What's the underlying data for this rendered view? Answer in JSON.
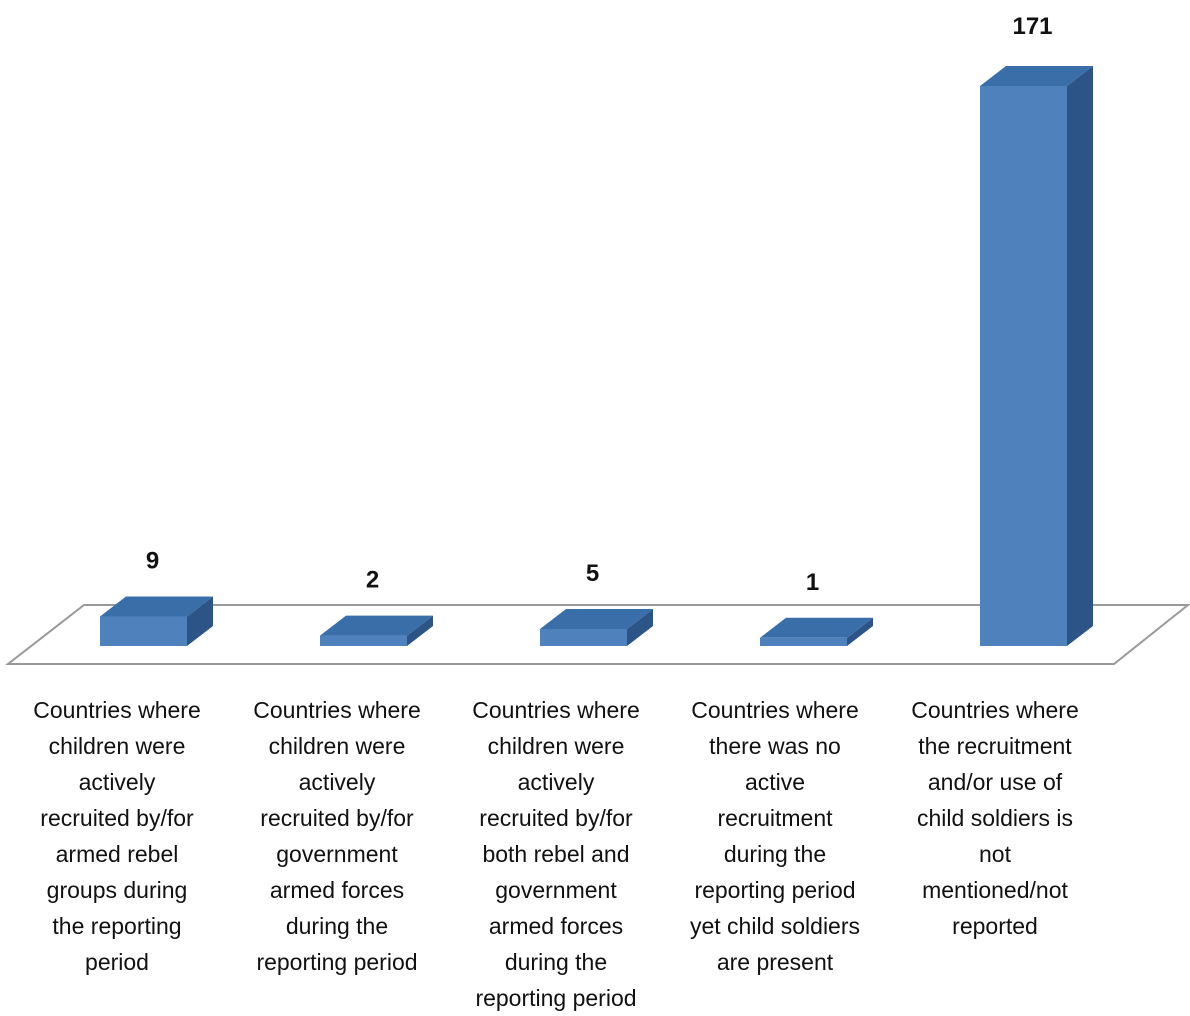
{
  "chart_data": {
    "type": "bar",
    "style": "3d-columns",
    "title": "",
    "xlabel": "",
    "ylabel": "",
    "grid": false,
    "legend": "none",
    "colors": {
      "bar_front": "#4F81BD",
      "bar_top": "#3A6EA8",
      "bar_side": "#2C5486",
      "floor_fill": "#ffffff",
      "floor_stroke": "#9a9a9a"
    },
    "categories": [
      "Countries where\nchildren were\nactively\nrecruited by/for\narmed rebel\ngroups during\nthe reporting\nperiod",
      "Countries where\nchildren were\nactively\nrecruited by/for\ngovernment\narmed forces\nduring the\nreporting period",
      "Countries where\nchildren were\nactively\nrecruited by/for\nboth rebel and\ngovernment\narmed forces\nduring the\nreporting period",
      "Countries where\nthere was no\nactive\nrecruitment\nduring the\nreporting period\nyet child soldiers\nare present",
      "Countries where\nthe recruitment\nand/or use of\nchild soldiers is\nnot\nmentioned/not\nreported"
    ],
    "values": [
      9,
      2,
      5,
      1,
      171
    ],
    "data_labels": [
      "9",
      "2",
      "5",
      "1",
      "171"
    ]
  }
}
